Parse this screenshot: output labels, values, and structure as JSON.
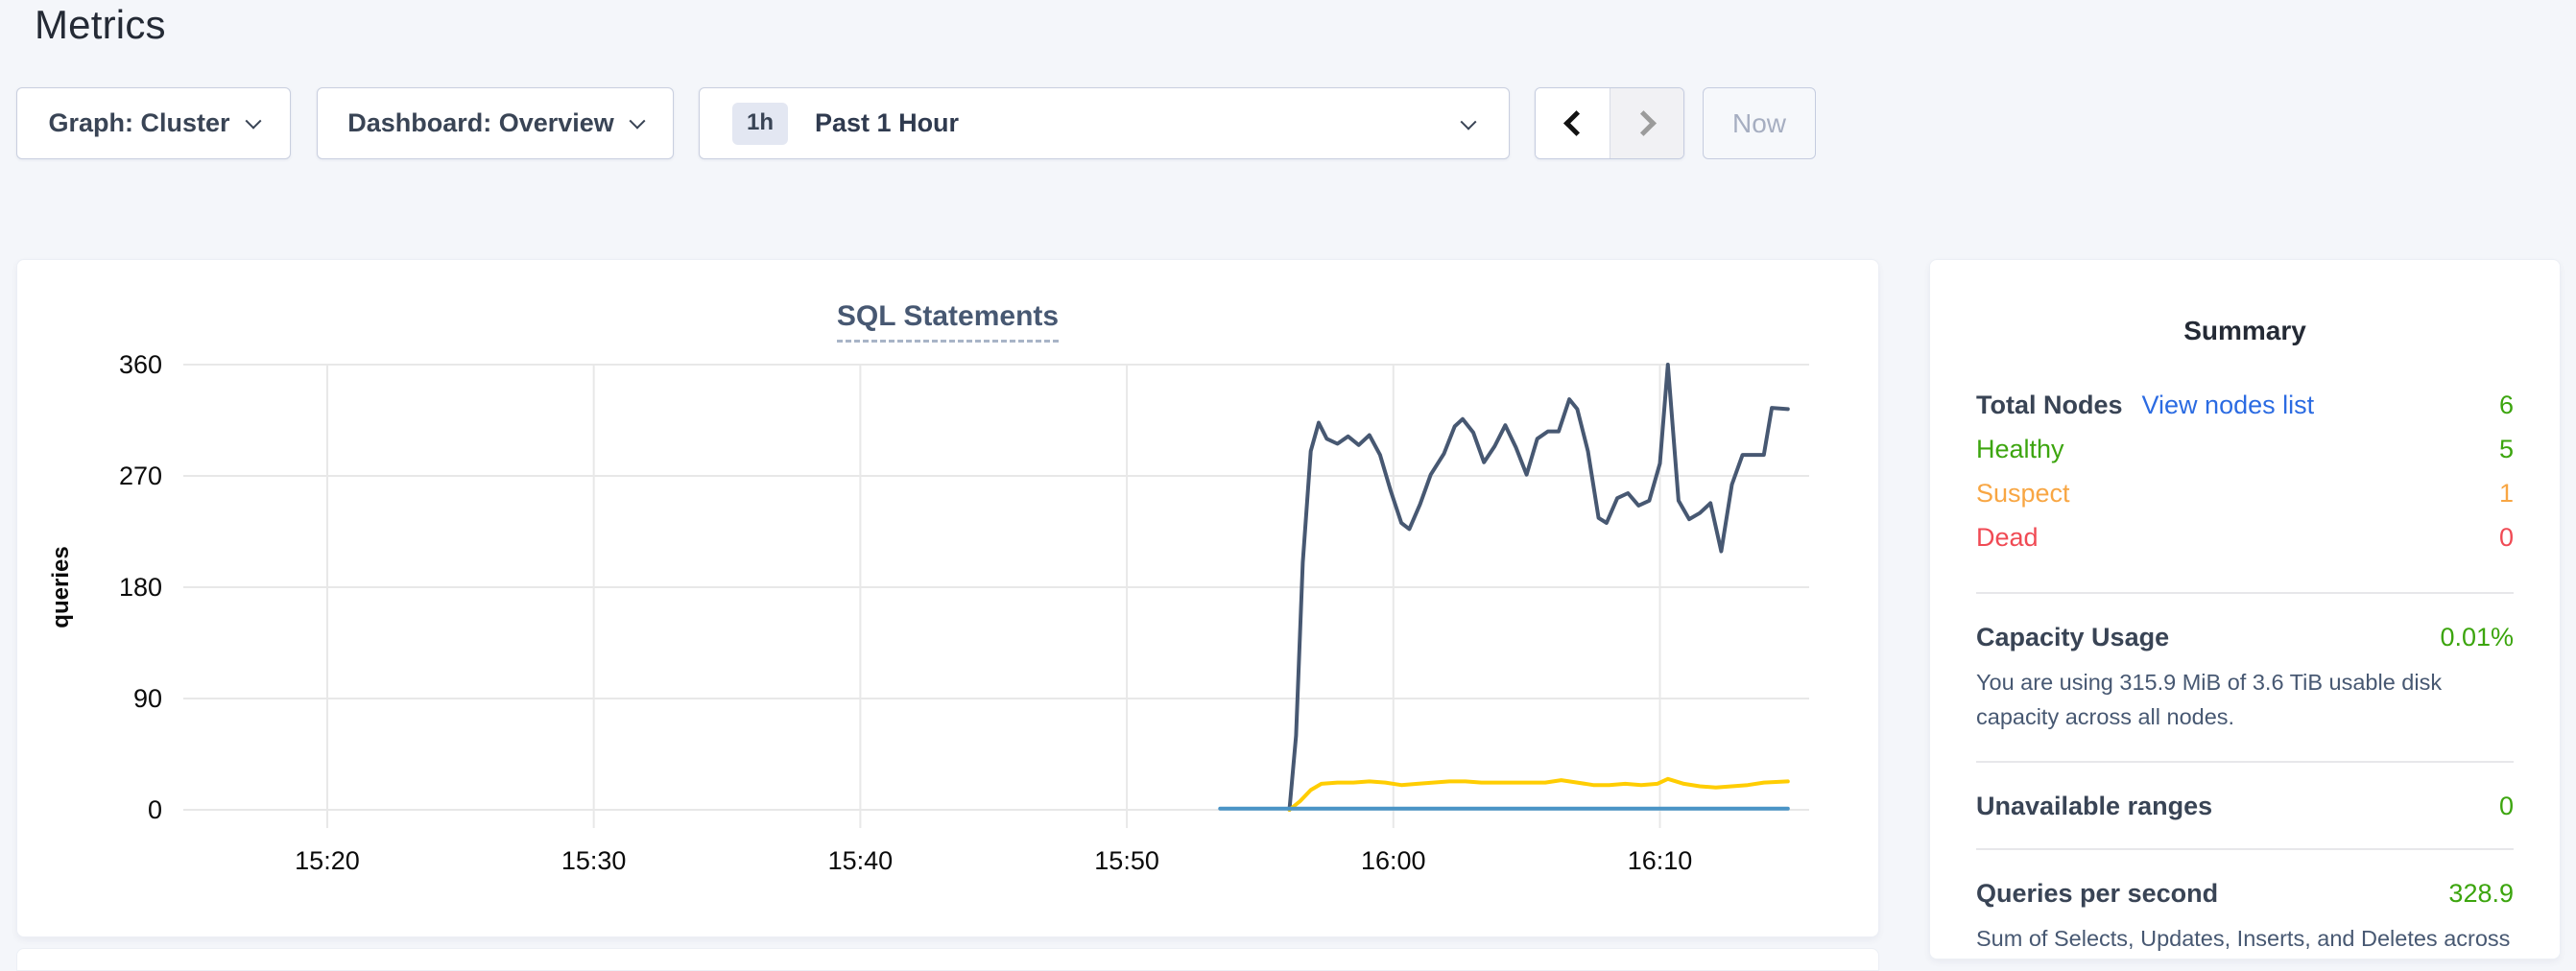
{
  "page_title": "Metrics",
  "toolbar": {
    "graph_dropdown": "Graph: Cluster",
    "dashboard_dropdown": "Dashboard: Overview",
    "range_badge": "1h",
    "range_label": "Past 1 Hour",
    "now_button": "Now"
  },
  "colors": {
    "accent_green": "#3CA50E",
    "warning_orange": "#F8A643",
    "danger_red": "#F04A54",
    "link_blue": "#2B6BE2",
    "series_dark": "#475872",
    "series_yellow": "#FFCD02",
    "series_blue": "#4A94C6",
    "gridline": "#E8E8E8",
    "tick_text": "#0B0B0B"
  },
  "summary": {
    "title": "Summary",
    "node_rows": [
      {
        "label": "Total Nodes",
        "link": "View nodes list",
        "value": "6",
        "label_style": "default",
        "value_style": "green"
      },
      {
        "label": "Healthy",
        "value": "5",
        "label_style": "green",
        "value_style": "green"
      },
      {
        "label": "Suspect",
        "value": "1",
        "label_style": "orange",
        "value_style": "orange"
      },
      {
        "label": "Dead",
        "value": "0",
        "label_style": "red",
        "value_style": "red"
      }
    ],
    "sections": [
      {
        "label": "Capacity Usage",
        "value": "0.01%",
        "desc": "You are using 315.9 MiB of 3.6 TiB usable disk capacity across all nodes."
      },
      {
        "label": "Unavailable ranges",
        "value": "0",
        "desc": ""
      },
      {
        "label": "Queries per second",
        "value": "328.9",
        "desc": "Sum of Selects, Updates, Inserts, and Deletes across your entire cluster."
      }
    ]
  },
  "chart_data": {
    "type": "line",
    "title": "SQL Statements",
    "xlabel": "",
    "ylabel": "queries",
    "ylim": [
      0,
      360
    ],
    "yticks": [
      0,
      90,
      180,
      270,
      360
    ],
    "x_unit": "minutes after 15:00",
    "x_domain": [
      14.6,
      75.6
    ],
    "xticks": [
      {
        "m": 20,
        "label": "15:20"
      },
      {
        "m": 30,
        "label": "15:30"
      },
      {
        "m": 40,
        "label": "15:40"
      },
      {
        "m": 50,
        "label": "15:50"
      },
      {
        "m": 60,
        "label": "16:00"
      },
      {
        "m": 70,
        "label": "16:10"
      }
    ],
    "grid": true,
    "legend": "none",
    "series": [
      {
        "name": "series-dark",
        "color_key": "series_dark",
        "points": [
          [
            56.1,
            0
          ],
          [
            56.35,
            60
          ],
          [
            56.6,
            200
          ],
          [
            56.9,
            290
          ],
          [
            57.2,
            313
          ],
          [
            57.5,
            300
          ],
          [
            57.9,
            296
          ],
          [
            58.3,
            302
          ],
          [
            58.7,
            295
          ],
          [
            59.1,
            303
          ],
          [
            59.5,
            287
          ],
          [
            59.9,
            258
          ],
          [
            60.3,
            232
          ],
          [
            60.6,
            227
          ],
          [
            61.0,
            247
          ],
          [
            61.4,
            271
          ],
          [
            61.9,
            288
          ],
          [
            62.3,
            310
          ],
          [
            62.6,
            316
          ],
          [
            63.0,
            305
          ],
          [
            63.4,
            281
          ],
          [
            63.8,
            294
          ],
          [
            64.2,
            311
          ],
          [
            64.6,
            293
          ],
          [
            65.0,
            271
          ],
          [
            65.4,
            300
          ],
          [
            65.8,
            306
          ],
          [
            66.2,
            306
          ],
          [
            66.6,
            332
          ],
          [
            66.9,
            324
          ],
          [
            67.3,
            290
          ],
          [
            67.7,
            236
          ],
          [
            68.0,
            232
          ],
          [
            68.4,
            252
          ],
          [
            68.8,
            256
          ],
          [
            69.2,
            246
          ],
          [
            69.6,
            250
          ],
          [
            70.0,
            280
          ],
          [
            70.3,
            360
          ],
          [
            70.7,
            250
          ],
          [
            71.1,
            235
          ],
          [
            71.5,
            240
          ],
          [
            71.9,
            248
          ],
          [
            72.3,
            209
          ],
          [
            72.7,
            263
          ],
          [
            73.1,
            287
          ],
          [
            73.5,
            287
          ],
          [
            73.9,
            287
          ],
          [
            74.2,
            325
          ],
          [
            74.8,
            324
          ]
        ]
      },
      {
        "name": "series-yellow",
        "color_key": "series_yellow",
        "points": [
          [
            56.1,
            0
          ],
          [
            56.5,
            7
          ],
          [
            56.9,
            16
          ],
          [
            57.3,
            21
          ],
          [
            57.9,
            22
          ],
          [
            58.5,
            22
          ],
          [
            59.1,
            23
          ],
          [
            59.7,
            22
          ],
          [
            60.3,
            20
          ],
          [
            60.9,
            21
          ],
          [
            61.5,
            22
          ],
          [
            62.1,
            23
          ],
          [
            62.7,
            23
          ],
          [
            63.3,
            22
          ],
          [
            63.9,
            22
          ],
          [
            64.5,
            22
          ],
          [
            65.1,
            22
          ],
          [
            65.7,
            22
          ],
          [
            66.3,
            24
          ],
          [
            66.9,
            22
          ],
          [
            67.5,
            20
          ],
          [
            68.1,
            20
          ],
          [
            68.7,
            21
          ],
          [
            69.3,
            20
          ],
          [
            69.9,
            21
          ],
          [
            70.3,
            25
          ],
          [
            70.9,
            21
          ],
          [
            71.5,
            19
          ],
          [
            72.1,
            18
          ],
          [
            72.7,
            19
          ],
          [
            73.3,
            20
          ],
          [
            73.9,
            22
          ],
          [
            74.8,
            23
          ]
        ]
      },
      {
        "name": "series-blue",
        "color_key": "series_blue",
        "points": [
          [
            53.5,
            1
          ],
          [
            74.8,
            1
          ]
        ]
      }
    ]
  }
}
